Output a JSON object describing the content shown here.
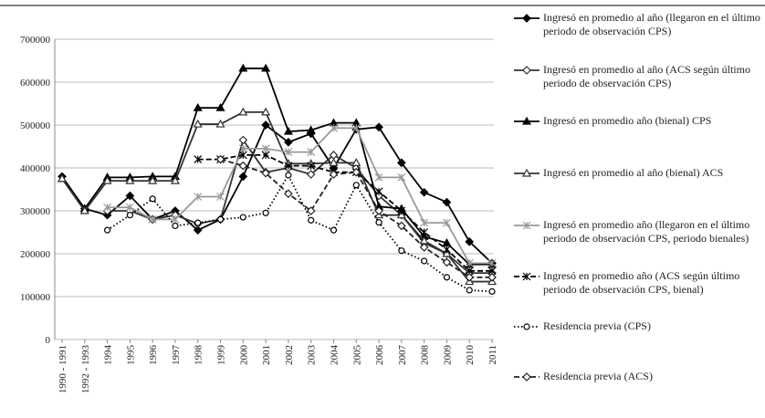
{
  "chart_data": {
    "type": "line",
    "categories": [
      "1990 - 1991",
      "1992 - 1993",
      "1994",
      "1995",
      "1996",
      "1997",
      "1998",
      "1999",
      "2000",
      "2001",
      "2002",
      "2003",
      "2004",
      "2005",
      "2006",
      "2007",
      "2008",
      "2009",
      "2010",
      "2011"
    ],
    "ylim": [
      0,
      700000
    ],
    "yticks": [
      0,
      100000,
      200000,
      300000,
      400000,
      500000,
      600000,
      700000
    ],
    "grid": true,
    "legend": "right",
    "series": [
      {
        "name": "Ingresó en promedio al año (llegaron en el último periodo de observación CPS)",
        "color": "#000000",
        "marker": "diamond",
        "fill": true,
        "dash": "solid",
        "values": [
          380000,
          305000,
          290000,
          335000,
          280000,
          300000,
          255000,
          280000,
          380000,
          500000,
          460000,
          480000,
          400000,
          490000,
          495000,
          412000,
          343000,
          320000,
          228000,
          178000
        ]
      },
      {
        "name": "Ingresó en promedio al año (ACS según último periodo de observación CPS)",
        "color": "#333333",
        "marker": "diamond",
        "fill": false,
        "dash": "solid",
        "values": [
          null,
          null,
          300000,
          300000,
          280000,
          290000,
          270000,
          280000,
          465000,
          390000,
          400000,
          385000,
          430000,
          400000,
          335000,
          290000,
          225000,
          200000,
          155000,
          155000
        ]
      },
      {
        "name": "Ingresó en promedio año (bienal) CPS",
        "color": "#000000",
        "marker": "triangle",
        "fill": true,
        "dash": "solid",
        "values": [
          375000,
          305000,
          378000,
          378000,
          380000,
          380000,
          540000,
          540000,
          632000,
          632000,
          485000,
          488000,
          505000,
          505000,
          310000,
          305000,
          240000,
          225000,
          175000,
          175000
        ]
      },
      {
        "name": "Ingresó en promedio al año (bienal) ACS",
        "color": "#333333",
        "marker": "triangle",
        "fill": false,
        "dash": "solid",
        "values": [
          375000,
          300000,
          370000,
          370000,
          370000,
          370000,
          502000,
          502000,
          530000,
          530000,
          410000,
          410000,
          412000,
          412000,
          290000,
          290000,
          230000,
          200000,
          135000,
          135000
        ]
      },
      {
        "name": "Ingresó en promedio año (llegaron en el último periodo de observación CPS, periodo bienales)",
        "color": "#999999",
        "marker": "asterisk",
        "fill": false,
        "dash": "solid",
        "values": [
          null,
          null,
          308000,
          308000,
          280000,
          280000,
          333000,
          333000,
          445000,
          445000,
          437000,
          437000,
          493000,
          493000,
          378000,
          378000,
          272000,
          272000,
          178000,
          178000
        ]
      },
      {
        "name": "Ingresó en promedio año (ACS según último periodo de observación CPS, bienal)",
        "color": "#000000",
        "marker": "asterisk",
        "fill": false,
        "dash": "dashed",
        "values": [
          null,
          null,
          null,
          null,
          null,
          null,
          420000,
          420000,
          430000,
          430000,
          405000,
          405000,
          390000,
          390000,
          345000,
          300000,
          250000,
          210000,
          160000,
          160000
        ]
      },
      {
        "name": "Residencia previa (CPS)",
        "color": "#000000",
        "marker": "circle",
        "fill": false,
        "dash": "dotted",
        "values": [
          null,
          null,
          255000,
          290000,
          328000,
          265000,
          272000,
          280000,
          285000,
          295000,
          383000,
          278000,
          255000,
          360000,
          273000,
          207000,
          183000,
          145000,
          115000,
          112000
        ]
      },
      {
        "name": "Residencia previa (ACS)",
        "color": "#222222",
        "marker": "diamond",
        "fill": false,
        "dash": "dashed",
        "values": [
          null,
          null,
          null,
          null,
          null,
          null,
          null,
          420000,
          405000,
          388000,
          340000,
          300000,
          385000,
          390000,
          300000,
          265000,
          215000,
          180000,
          145000,
          145000
        ]
      }
    ]
  }
}
